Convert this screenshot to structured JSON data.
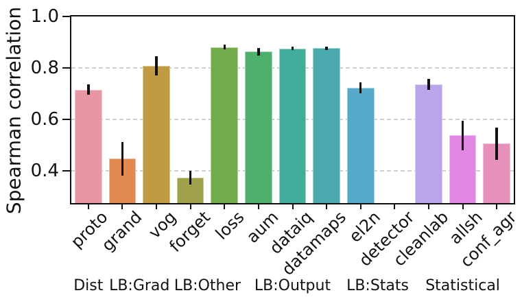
{
  "chart_data": {
    "type": "bar",
    "title": "",
    "xlabel": "",
    "ylabel": "Spearman correlation",
    "ylim": [
      0.275,
      1.0
    ],
    "yticks": [
      0.4,
      0.6,
      0.8,
      1.0
    ],
    "grid": "horizontal dashed",
    "legend": "none",
    "categories": [
      "proto",
      "grand",
      "vog",
      "forget",
      "loss",
      "aum",
      "dataiq",
      "datamaps",
      "el2n",
      "detector",
      "cleanlab",
      "allsh",
      "conf_agr"
    ],
    "values": [
      0.716,
      0.447,
      0.808,
      0.373,
      0.881,
      0.863,
      0.876,
      0.877,
      0.723,
      null,
      0.736,
      0.538,
      0.506
    ],
    "errors": [
      0.019,
      0.066,
      0.037,
      0.027,
      0.009,
      0.015,
      0.007,
      0.007,
      0.021,
      null,
      0.022,
      0.057,
      0.063
    ],
    "bar_colors": [
      "#e996a2",
      "#e08a51",
      "#c19b44",
      "#a0a14b",
      "#72ac4b",
      "#4fb06e",
      "#43ad9c",
      "#4aaaad",
      "#56a9c9",
      "#56a9c9",
      "#b9a5e9",
      "#e288e2",
      "#e890bc"
    ],
    "error_bar_color": "#111111",
    "axis_color": "#0f0f0f",
    "gridline_color": "#cfcfcf",
    "groups": [
      {
        "label": "Dist",
        "categories": [
          "proto"
        ]
      },
      {
        "label": "LB:Grad",
        "categories": [
          "grand",
          "vog"
        ]
      },
      {
        "label": "LB:Other",
        "categories": [
          "forget",
          "loss"
        ]
      },
      {
        "label": "LB:Output",
        "categories": [
          "aum",
          "dataiq",
          "datamaps"
        ]
      },
      {
        "label": "LB:Stats",
        "categories": [
          "el2n",
          "detector"
        ]
      },
      {
        "label": "Statistical",
        "categories": [
          "cleanlab",
          "allsh",
          "conf_agr"
        ]
      }
    ]
  }
}
